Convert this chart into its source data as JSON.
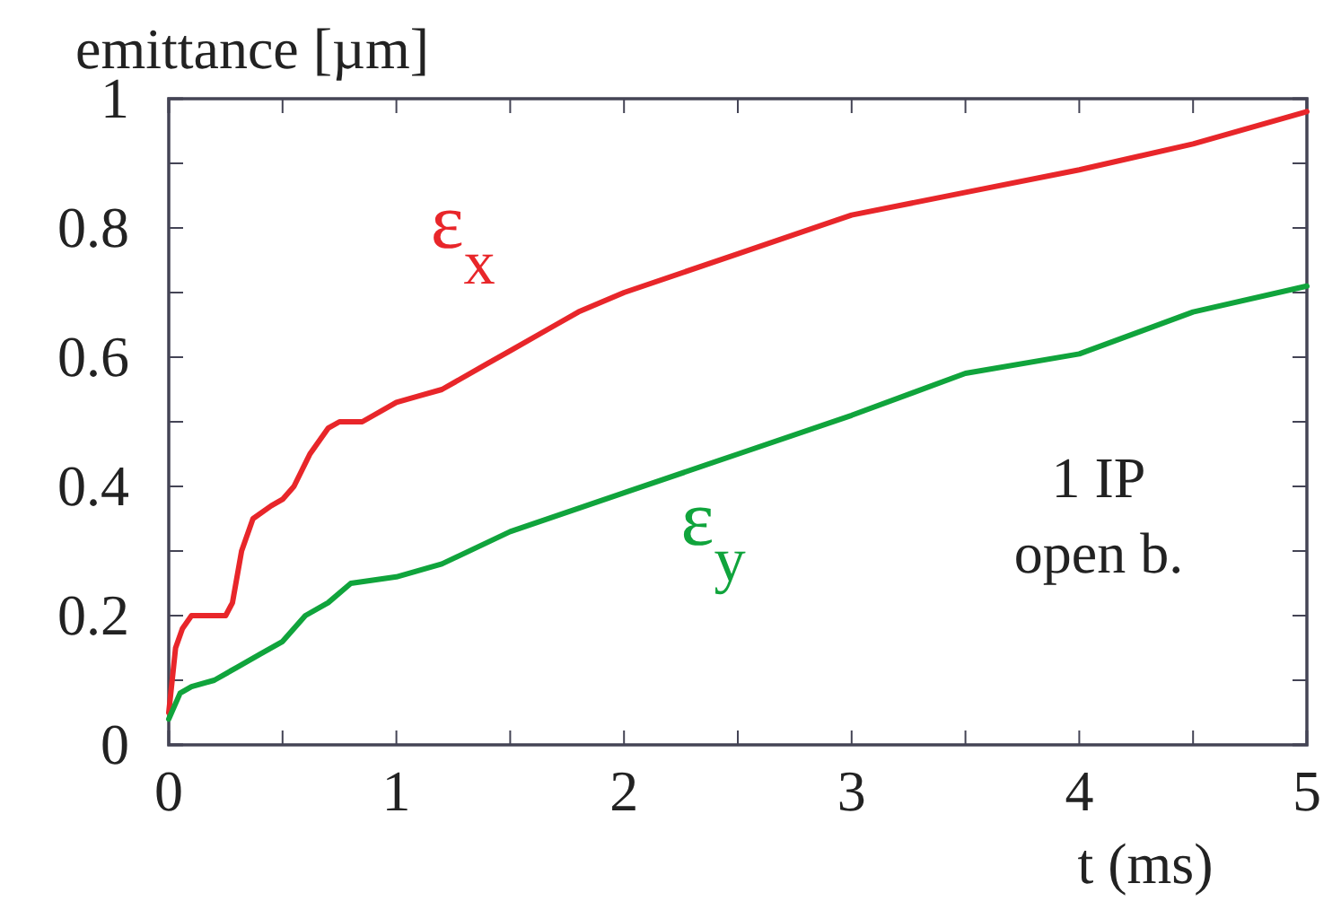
{
  "chart_data": {
    "type": "line",
    "xlabel": "t (ms)",
    "ylabel": "emittance [µm]",
    "xlim": [
      0,
      5
    ],
    "ylim": [
      0,
      1
    ],
    "xticks": [
      0,
      {
        "value": 0.5,
        "label": null
      },
      1,
      {
        "value": 1.5,
        "label": null
      },
      2,
      {
        "value": 2.5,
        "label": null
      },
      3,
      {
        "value": 3.5,
        "label": null
      },
      4,
      {
        "value": 4.5,
        "label": null
      },
      5
    ],
    "yticks": [
      0,
      {
        "value": 0.1,
        "label": null
      },
      0.2,
      {
        "value": 0.3,
        "label": null
      },
      0.4,
      {
        "value": 0.5,
        "label": null
      },
      0.6,
      {
        "value": 0.7,
        "label": null
      },
      0.8,
      {
        "value": 0.9,
        "label": null
      },
      1
    ],
    "grid": false,
    "legend": false,
    "marker": "none",
    "line_style": "solid",
    "series": [
      {
        "name": "ε$_{x}$",
        "color": "#e8262a",
        "x": [
          0,
          0.03,
          0.06,
          0.1,
          0.2,
          0.25,
          0.28,
          0.32,
          0.37,
          0.45,
          0.5,
          0.55,
          0.62,
          0.7,
          0.75,
          0.85,
          1.0,
          1.1,
          1.2,
          1.4,
          1.5,
          1.7,
          1.8,
          2.0,
          2.5,
          3.0,
          3.5,
          4.0,
          4.5,
          5.0
        ],
        "values": [
          0.05,
          0.15,
          0.18,
          0.2,
          0.2,
          0.2,
          0.22,
          0.3,
          0.35,
          0.37,
          0.38,
          0.4,
          0.45,
          0.49,
          0.5,
          0.5,
          0.53,
          0.54,
          0.55,
          0.59,
          0.61,
          0.65,
          0.67,
          0.7,
          0.76,
          0.82,
          0.855,
          0.89,
          0.93,
          0.98
        ]
      },
      {
        "name": "ε$_{y}$",
        "color": "#10a43c",
        "x": [
          0,
          0.05,
          0.1,
          0.2,
          0.3,
          0.4,
          0.5,
          0.6,
          0.7,
          0.8,
          1.0,
          1.2,
          1.5,
          2.0,
          2.5,
          3.0,
          3.5,
          4.0,
          4.5,
          5.0
        ],
        "values": [
          0.04,
          0.08,
          0.09,
          0.1,
          0.12,
          0.14,
          0.16,
          0.2,
          0.22,
          0.25,
          0.26,
          0.28,
          0.33,
          0.39,
          0.45,
          0.51,
          0.575,
          0.605,
          0.67,
          0.71
        ]
      }
    ],
    "annotations": [
      "1 IP",
      "open b."
    ]
  }
}
